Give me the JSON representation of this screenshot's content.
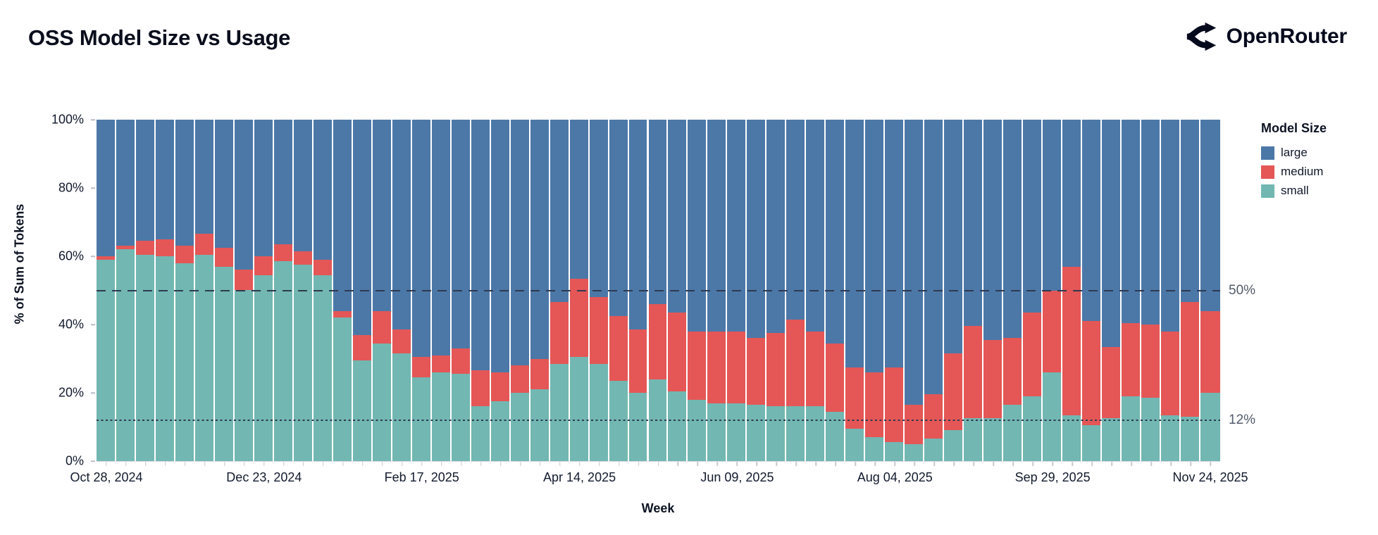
{
  "header": {
    "title": "OSS Model Size vs Usage",
    "brand": "OpenRouter"
  },
  "axes": {
    "x_title": "Week",
    "y_title": "% of Sum of Tokens"
  },
  "chart_data": {
    "type": "bar",
    "stacked": true,
    "normalized": true,
    "title": "OSS Model Size vs Usage",
    "xlabel": "Week",
    "ylabel": "% of Sum of Tokens",
    "ylim": [
      0,
      100
    ],
    "grid": true,
    "y_ticks": [
      {
        "value": 0,
        "label": "0%"
      },
      {
        "value": 20,
        "label": "20%"
      },
      {
        "value": 40,
        "label": "40%"
      },
      {
        "value": 60,
        "label": "60%"
      },
      {
        "value": 80,
        "label": "80%"
      },
      {
        "value": 100,
        "label": "100%"
      }
    ],
    "x_ticks": [
      {
        "index": 0,
        "label": "Oct 28, 2024"
      },
      {
        "index": 8,
        "label": "Dec 23, 2024"
      },
      {
        "index": 16,
        "label": "Feb 17, 2025"
      },
      {
        "index": 24,
        "label": "Apr 14, 2025"
      },
      {
        "index": 32,
        "label": "Jun 09, 2025"
      },
      {
        "index": 40,
        "label": "Aug 04, 2025"
      },
      {
        "index": 48,
        "label": "Sep 29, 2025"
      },
      {
        "index": 56,
        "label": "Nov 24, 2025"
      }
    ],
    "categories": [
      "Oct 28, 2024",
      "Nov 04, 2024",
      "Nov 11, 2024",
      "Nov 18, 2024",
      "Nov 25, 2024",
      "Dec 02, 2024",
      "Dec 09, 2024",
      "Dec 16, 2024",
      "Dec 23, 2024",
      "Dec 30, 2024",
      "Jan 06, 2025",
      "Jan 13, 2025",
      "Jan 20, 2025",
      "Jan 27, 2025",
      "Feb 03, 2025",
      "Feb 10, 2025",
      "Feb 17, 2025",
      "Feb 24, 2025",
      "Mar 03, 2025",
      "Mar 10, 2025",
      "Mar 17, 2025",
      "Mar 24, 2025",
      "Mar 31, 2025",
      "Apr 07, 2025",
      "Apr 14, 2025",
      "Apr 21, 2025",
      "Apr 28, 2025",
      "May 05, 2025",
      "May 12, 2025",
      "May 19, 2025",
      "May 26, 2025",
      "Jun 02, 2025",
      "Jun 09, 2025",
      "Jun 16, 2025",
      "Jun 23, 2025",
      "Jun 30, 2025",
      "Jul 07, 2025",
      "Jul 14, 2025",
      "Jul 21, 2025",
      "Jul 28, 2025",
      "Aug 04, 2025",
      "Aug 11, 2025",
      "Aug 18, 2025",
      "Aug 25, 2025",
      "Sep 01, 2025",
      "Sep 08, 2025",
      "Sep 15, 2025",
      "Sep 22, 2025",
      "Sep 29, 2025",
      "Oct 06, 2025",
      "Oct 13, 2025",
      "Oct 20, 2025",
      "Oct 27, 2025",
      "Nov 03, 2025",
      "Nov 10, 2025",
      "Nov 17, 2025",
      "Nov 24, 2025"
    ],
    "series": [
      {
        "name": "small",
        "color": "#72b7b2",
        "values": [
          59,
          62,
          60.5,
          60,
          58,
          60.5,
          57,
          50,
          54.5,
          58.5,
          57.5,
          54.5,
          42,
          29.5,
          34.5,
          31.5,
          24.5,
          26,
          25.5,
          16,
          17.5,
          20,
          21,
          28.5,
          30.5,
          28.5,
          23.5,
          20,
          24,
          20.5,
          18,
          17,
          17,
          16.5,
          16,
          16,
          16,
          14.5,
          9.5,
          7,
          5.5,
          5,
          6.5,
          9,
          12.5,
          12.5,
          16.5,
          19,
          26,
          13.5,
          10.5,
          12.5,
          19,
          18.5,
          13.5,
          13,
          20
        ]
      },
      {
        "name": "medium",
        "color": "#e45756",
        "values": [
          1,
          1,
          4,
          5,
          5,
          6,
          5.5,
          6,
          5.5,
          5,
          4,
          4.5,
          2,
          7.5,
          9.5,
          7,
          6,
          5,
          7.5,
          10.5,
          8.5,
          8,
          9,
          18,
          23,
          19.5,
          19,
          18.5,
          22,
          23,
          20,
          21,
          21,
          19.5,
          21.5,
          25.5,
          22,
          20,
          18,
          19,
          22,
          11.5,
          13,
          22.5,
          27,
          23,
          19.5,
          24.5,
          24,
          43.5,
          30.5,
          21,
          21.5,
          21.5,
          24.5,
          33.5,
          24
        ]
      },
      {
        "name": "large",
        "color": "#4c78a8",
        "values": [
          40,
          37,
          35.5,
          35,
          37,
          33.5,
          37.5,
          44,
          40,
          36.5,
          38.5,
          41,
          56,
          63,
          56,
          61.5,
          69.5,
          69,
          67,
          73.5,
          74,
          72,
          70,
          53.5,
          46.5,
          52,
          57.5,
          61.5,
          54,
          56.5,
          62,
          62,
          62,
          64,
          62.5,
          58.5,
          62,
          65.5,
          72.5,
          74,
          72.5,
          83.5,
          80.5,
          68.5,
          60.5,
          64.5,
          64,
          56.5,
          50,
          43,
          59,
          66.5,
          59.5,
          60,
          62,
          53.5,
          56
        ]
      }
    ],
    "legend": {
      "title": "Model Size",
      "position": "right",
      "entries": [
        {
          "label": "large",
          "color": "#4c78a8"
        },
        {
          "label": "medium",
          "color": "#e45756"
        },
        {
          "label": "small",
          "color": "#72b7b2"
        }
      ]
    },
    "annotations": [
      {
        "value": 50,
        "label": "50%",
        "style": "dashed"
      },
      {
        "value": 12,
        "label": "12%",
        "style": "dotted"
      }
    ]
  }
}
